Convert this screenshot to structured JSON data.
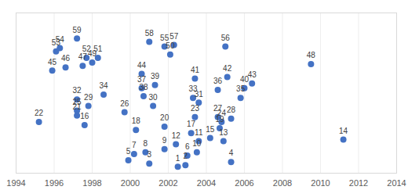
{
  "chart_data": {
    "type": "scatter",
    "color": "#4472c4",
    "labels": [
      "1",
      "2",
      "3",
      "4",
      "5",
      "6",
      "7",
      "8",
      "9",
      "10",
      "11",
      "12",
      "13",
      "14",
      "15",
      "16",
      "17",
      "18",
      "19",
      "20",
      "21",
      "22",
      "23",
      "24",
      "25",
      "26",
      "27",
      "28",
      "29",
      "30",
      "31",
      "32",
      "33",
      "34",
      "35",
      "36",
      "37",
      "38",
      "39",
      "40",
      "41",
      "42",
      "43",
      "44",
      "45",
      "46",
      "47",
      "48",
      "49",
      "50",
      "51",
      "52",
      "53",
      "54",
      "55",
      "56",
      "57",
      "58",
      "59"
    ],
    "x": [
      2002.5,
      2002.9,
      2001.0,
      2005.3,
      1999.9,
      2003.0,
      2000.2,
      2000.8,
      2001.8,
      2003.5,
      2003.6,
      2002.4,
      2004.9,
      2011.2,
      2004.2,
      1997.6,
      2003.2,
      2000.3,
      2004.7,
      2001.8,
      1997.2,
      1995.2,
      2003.4,
      2004.8,
      1997.2,
      1999.7,
      2004.6,
      2005.3,
      1997.8,
      2001.2,
      2003.6,
      1997.2,
      2003.3,
      1998.6,
      2005.8,
      2004.6,
      2000.6,
      2000.7,
      2001.3,
      2006.0,
      2003.4,
      2005.1,
      2006.4,
      2000.6,
      1995.9,
      1996.6,
      1997.5,
      2009.5,
      1998.0,
      2002.1,
      1998.3,
      1997.7,
      1996.1,
      1996.3,
      2001.8,
      2005.0,
      2002.3,
      2001.0,
      1997.2
    ],
    "values": [
      0.4,
      0.5,
      0.6,
      0.7,
      0.8,
      1.1,
      1.2,
      1.3,
      1.5,
      1.3,
      2.0,
      1.8,
      2.0,
      2.1,
      2.2,
      3.0,
      2.5,
      2.7,
      2.8,
      2.9,
      3.6,
      3.2,
      3.5,
      3.2,
      3.9,
      3.8,
      3.5,
      3.4,
      4.2,
      4.2,
      4.4,
      4.6,
      4.7,
      4.9,
      4.7,
      5.2,
      5.3,
      4.8,
      5.5,
      5.3,
      5.9,
      6.0,
      5.6,
      6.2,
      6.4,
      6.6,
      6.7,
      6.8,
      6.9,
      7.4,
      7.2,
      7.2,
      7.6,
      7.8,
      7.9,
      7.9,
      8.0,
      8.2,
      8.4
    ],
    "xlim": [
      1994,
      2014
    ],
    "xticks": [
      1994,
      1996,
      1998,
      2000,
      2002,
      2004,
      2006,
      2008,
      2010,
      2012,
      2014
    ],
    "ylim": [
      0,
      10
    ],
    "grid": true,
    "data_labels": true,
    "tick_labels": "x"
  }
}
